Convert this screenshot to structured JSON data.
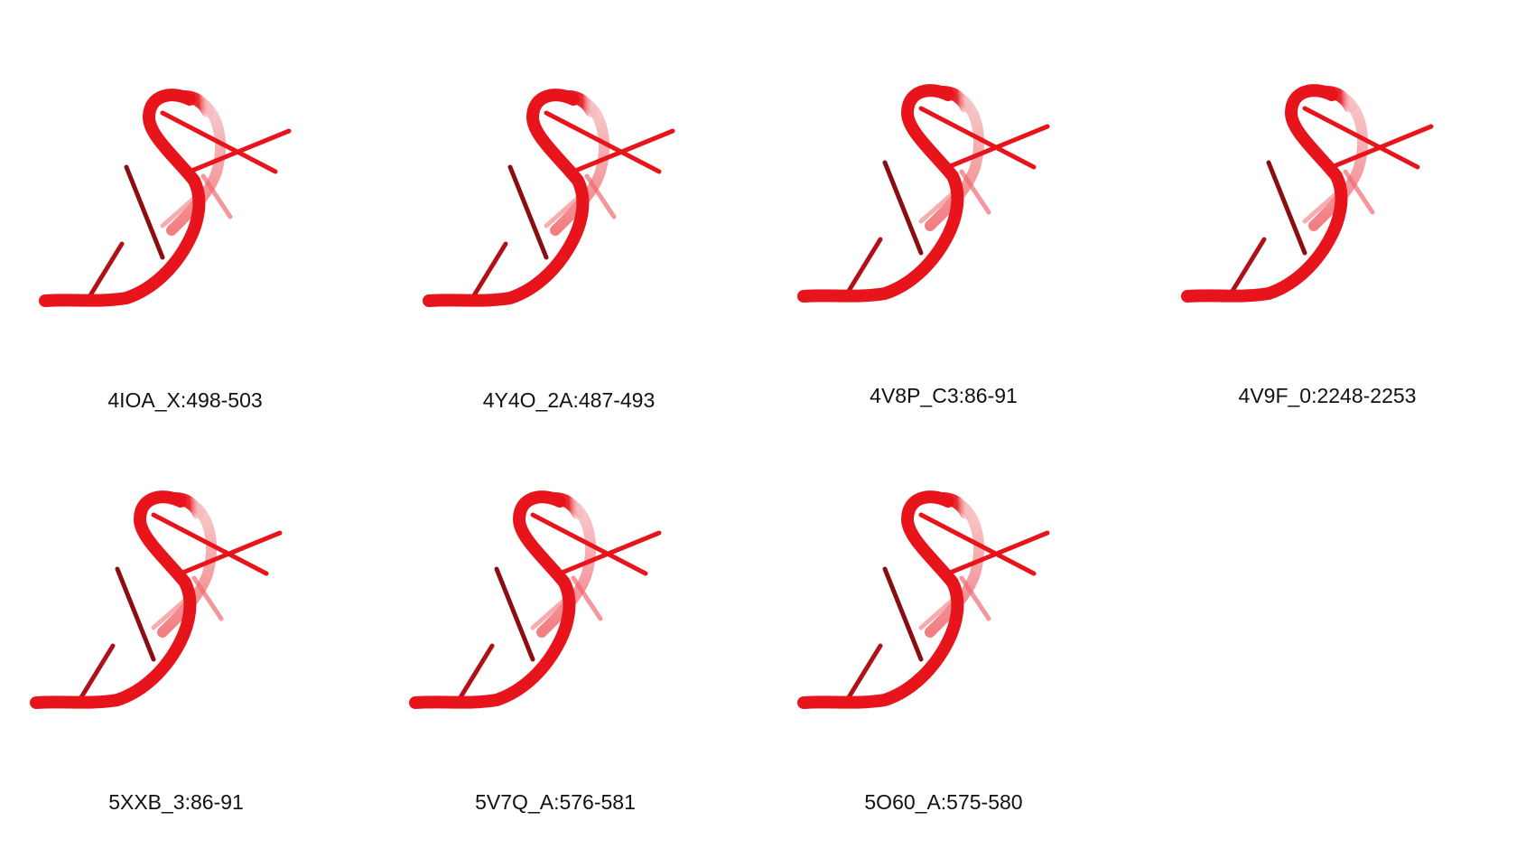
{
  "colors": {
    "backbone": "#e8141c",
    "backbone_dark": "#b50e14",
    "base_dark": "#8a0d12",
    "base_faded": "#f07a80"
  },
  "panels": [
    {
      "caption": "4IOA_X:498-503"
    },
    {
      "caption": "4Y4O_2A:487-493"
    },
    {
      "caption": "4V8P_C3:86-91"
    },
    {
      "caption": "4V9F_0:2248-2253"
    },
    {
      "caption": "5XXB_3:86-91"
    },
    {
      "caption": "5V7Q_A:576-581"
    },
    {
      "caption": "5O60_A:575-580"
    }
  ]
}
